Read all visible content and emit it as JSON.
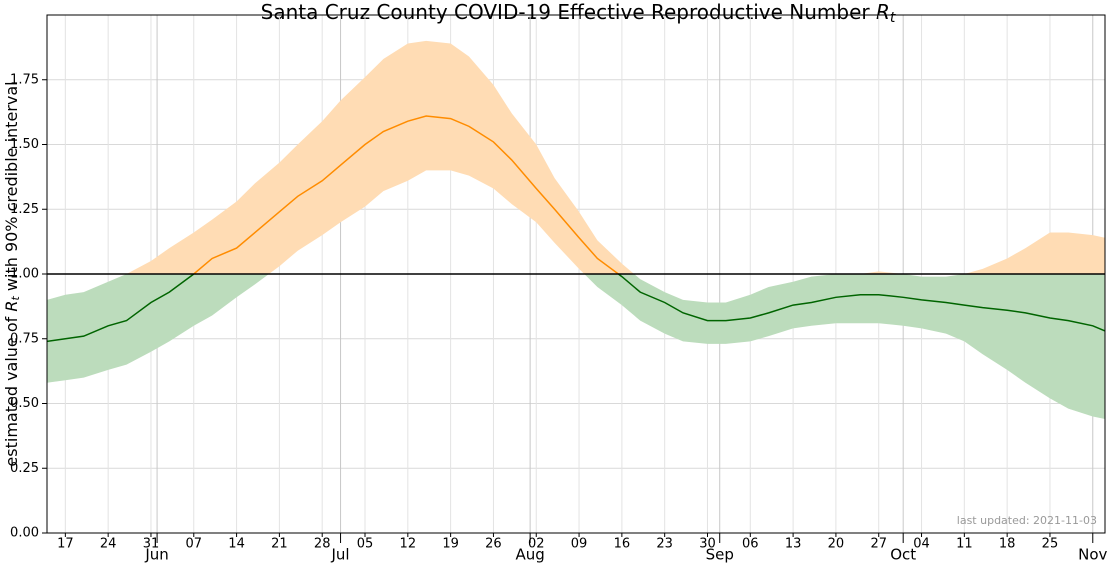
{
  "chart_data": {
    "type": "line-band",
    "title": {
      "text": "Santa Cruz County COVID-19 Effective Reproductive Number ",
      "var": "R",
      "sub": "t"
    },
    "ylabel": {
      "pre": "estimated value of ",
      "var": "R",
      "sub": "t",
      "post": " with 90% credible interval"
    },
    "annotation": "last updated: 2021-11-03",
    "x": [
      "05-14",
      "05-17",
      "05-20",
      "05-24",
      "05-27",
      "05-31",
      "06-03",
      "06-07",
      "06-10",
      "06-14",
      "06-17",
      "06-21",
      "06-24",
      "06-28",
      "07-01",
      "07-05",
      "07-08",
      "07-12",
      "07-15",
      "07-19",
      "07-22",
      "07-26",
      "07-29",
      "08-02",
      "08-05",
      "08-09",
      "08-12",
      "08-16",
      "08-19",
      "08-23",
      "08-26",
      "08-30",
      "09-02",
      "09-06",
      "09-09",
      "09-13",
      "09-16",
      "09-20",
      "09-24",
      "09-27",
      "10-01",
      "10-04",
      "10-08",
      "10-11",
      "10-14",
      "10-18",
      "10-21",
      "10-25",
      "10-28",
      "11-01",
      "11-03"
    ],
    "values": [
      0.74,
      0.75,
      0.76,
      0.8,
      0.82,
      0.89,
      0.93,
      1.0,
      1.06,
      1.1,
      1.16,
      1.24,
      1.3,
      1.36,
      1.42,
      1.5,
      1.55,
      1.59,
      1.61,
      1.6,
      1.57,
      1.51,
      1.44,
      1.33,
      1.25,
      1.14,
      1.06,
      0.99,
      0.93,
      0.89,
      0.85,
      0.82,
      0.82,
      0.83,
      0.85,
      0.88,
      0.89,
      0.91,
      0.92,
      0.92,
      0.91,
      0.9,
      0.89,
      0.88,
      0.87,
      0.86,
      0.85,
      0.83,
      0.82,
      0.8,
      0.78
    ],
    "lower": [
      0.58,
      0.59,
      0.6,
      0.63,
      0.65,
      0.7,
      0.74,
      0.8,
      0.84,
      0.91,
      0.96,
      1.03,
      1.09,
      1.15,
      1.2,
      1.26,
      1.32,
      1.36,
      1.4,
      1.4,
      1.38,
      1.33,
      1.27,
      1.2,
      1.12,
      1.02,
      0.95,
      0.88,
      0.82,
      0.77,
      0.74,
      0.73,
      0.73,
      0.74,
      0.76,
      0.79,
      0.8,
      0.81,
      0.81,
      0.81,
      0.8,
      0.79,
      0.77,
      0.74,
      0.69,
      0.63,
      0.58,
      0.52,
      0.48,
      0.45,
      0.44
    ],
    "upper": [
      0.9,
      0.92,
      0.93,
      0.97,
      1.0,
      1.05,
      1.1,
      1.16,
      1.21,
      1.28,
      1.35,
      1.43,
      1.5,
      1.59,
      1.67,
      1.76,
      1.83,
      1.89,
      1.9,
      1.89,
      1.84,
      1.73,
      1.62,
      1.5,
      1.37,
      1.24,
      1.13,
      1.04,
      0.98,
      0.93,
      0.9,
      0.89,
      0.89,
      0.92,
      0.95,
      0.97,
      0.99,
      1.0,
      1.0,
      1.01,
      1.0,
      0.99,
      0.99,
      1.0,
      1.02,
      1.06,
      1.1,
      1.16,
      1.16,
      1.15,
      1.14
    ],
    "threshold": 1,
    "color_above": "#ff8c00",
    "color_below": "#006400",
    "band_above": "#ffdcb4",
    "band_below": "#bcdcbc",
    "xlim": [
      "05-14",
      "11-03"
    ],
    "xticks": [
      {
        "value": "05-17",
        "label": "17"
      },
      {
        "value": "05-24",
        "label": "24"
      },
      {
        "value": "05-31",
        "label": "31"
      },
      {
        "value": "06-07",
        "label": "07"
      },
      {
        "value": "06-14",
        "label": "14"
      },
      {
        "value": "06-21",
        "label": "21"
      },
      {
        "value": "06-28",
        "label": "28"
      },
      {
        "value": "07-05",
        "label": "05"
      },
      {
        "value": "07-12",
        "label": "12"
      },
      {
        "value": "07-19",
        "label": "19"
      },
      {
        "value": "07-26",
        "label": "26"
      },
      {
        "value": "08-02",
        "label": "02"
      },
      {
        "value": "08-09",
        "label": "09"
      },
      {
        "value": "08-16",
        "label": "16"
      },
      {
        "value": "08-23",
        "label": "23"
      },
      {
        "value": "08-30",
        "label": "30"
      },
      {
        "value": "09-06",
        "label": "06"
      },
      {
        "value": "09-13",
        "label": "13"
      },
      {
        "value": "09-20",
        "label": "20"
      },
      {
        "value": "09-27",
        "label": "27"
      },
      {
        "value": "10-04",
        "label": "04"
      },
      {
        "value": "10-11",
        "label": "11"
      },
      {
        "value": "10-18",
        "label": "18"
      },
      {
        "value": "10-25",
        "label": "25"
      }
    ],
    "xticks_major": [
      {
        "value": "06-01",
        "label": "Jun"
      },
      {
        "value": "07-01",
        "label": "Jul"
      },
      {
        "value": "08-01",
        "label": "Aug"
      },
      {
        "value": "09-01",
        "label": "Sep"
      },
      {
        "value": "10-01",
        "label": "Oct"
      },
      {
        "value": "11-01",
        "label": "Nov"
      }
    ],
    "ylim": [
      0,
      2
    ],
    "yticks": [
      {
        "value": 0,
        "label": "0.00"
      },
      {
        "value": 0.25,
        "label": "0.25"
      },
      {
        "value": 0.5,
        "label": "0.50"
      },
      {
        "value": 0.75,
        "label": "0.75"
      },
      {
        "value": 1,
        "label": "1.00"
      },
      {
        "value": 1.25,
        "label": "1.25"
      },
      {
        "value": 1.5,
        "label": "1.50"
      },
      {
        "value": 1.75,
        "label": "1.75"
      }
    ],
    "grid": true
  }
}
